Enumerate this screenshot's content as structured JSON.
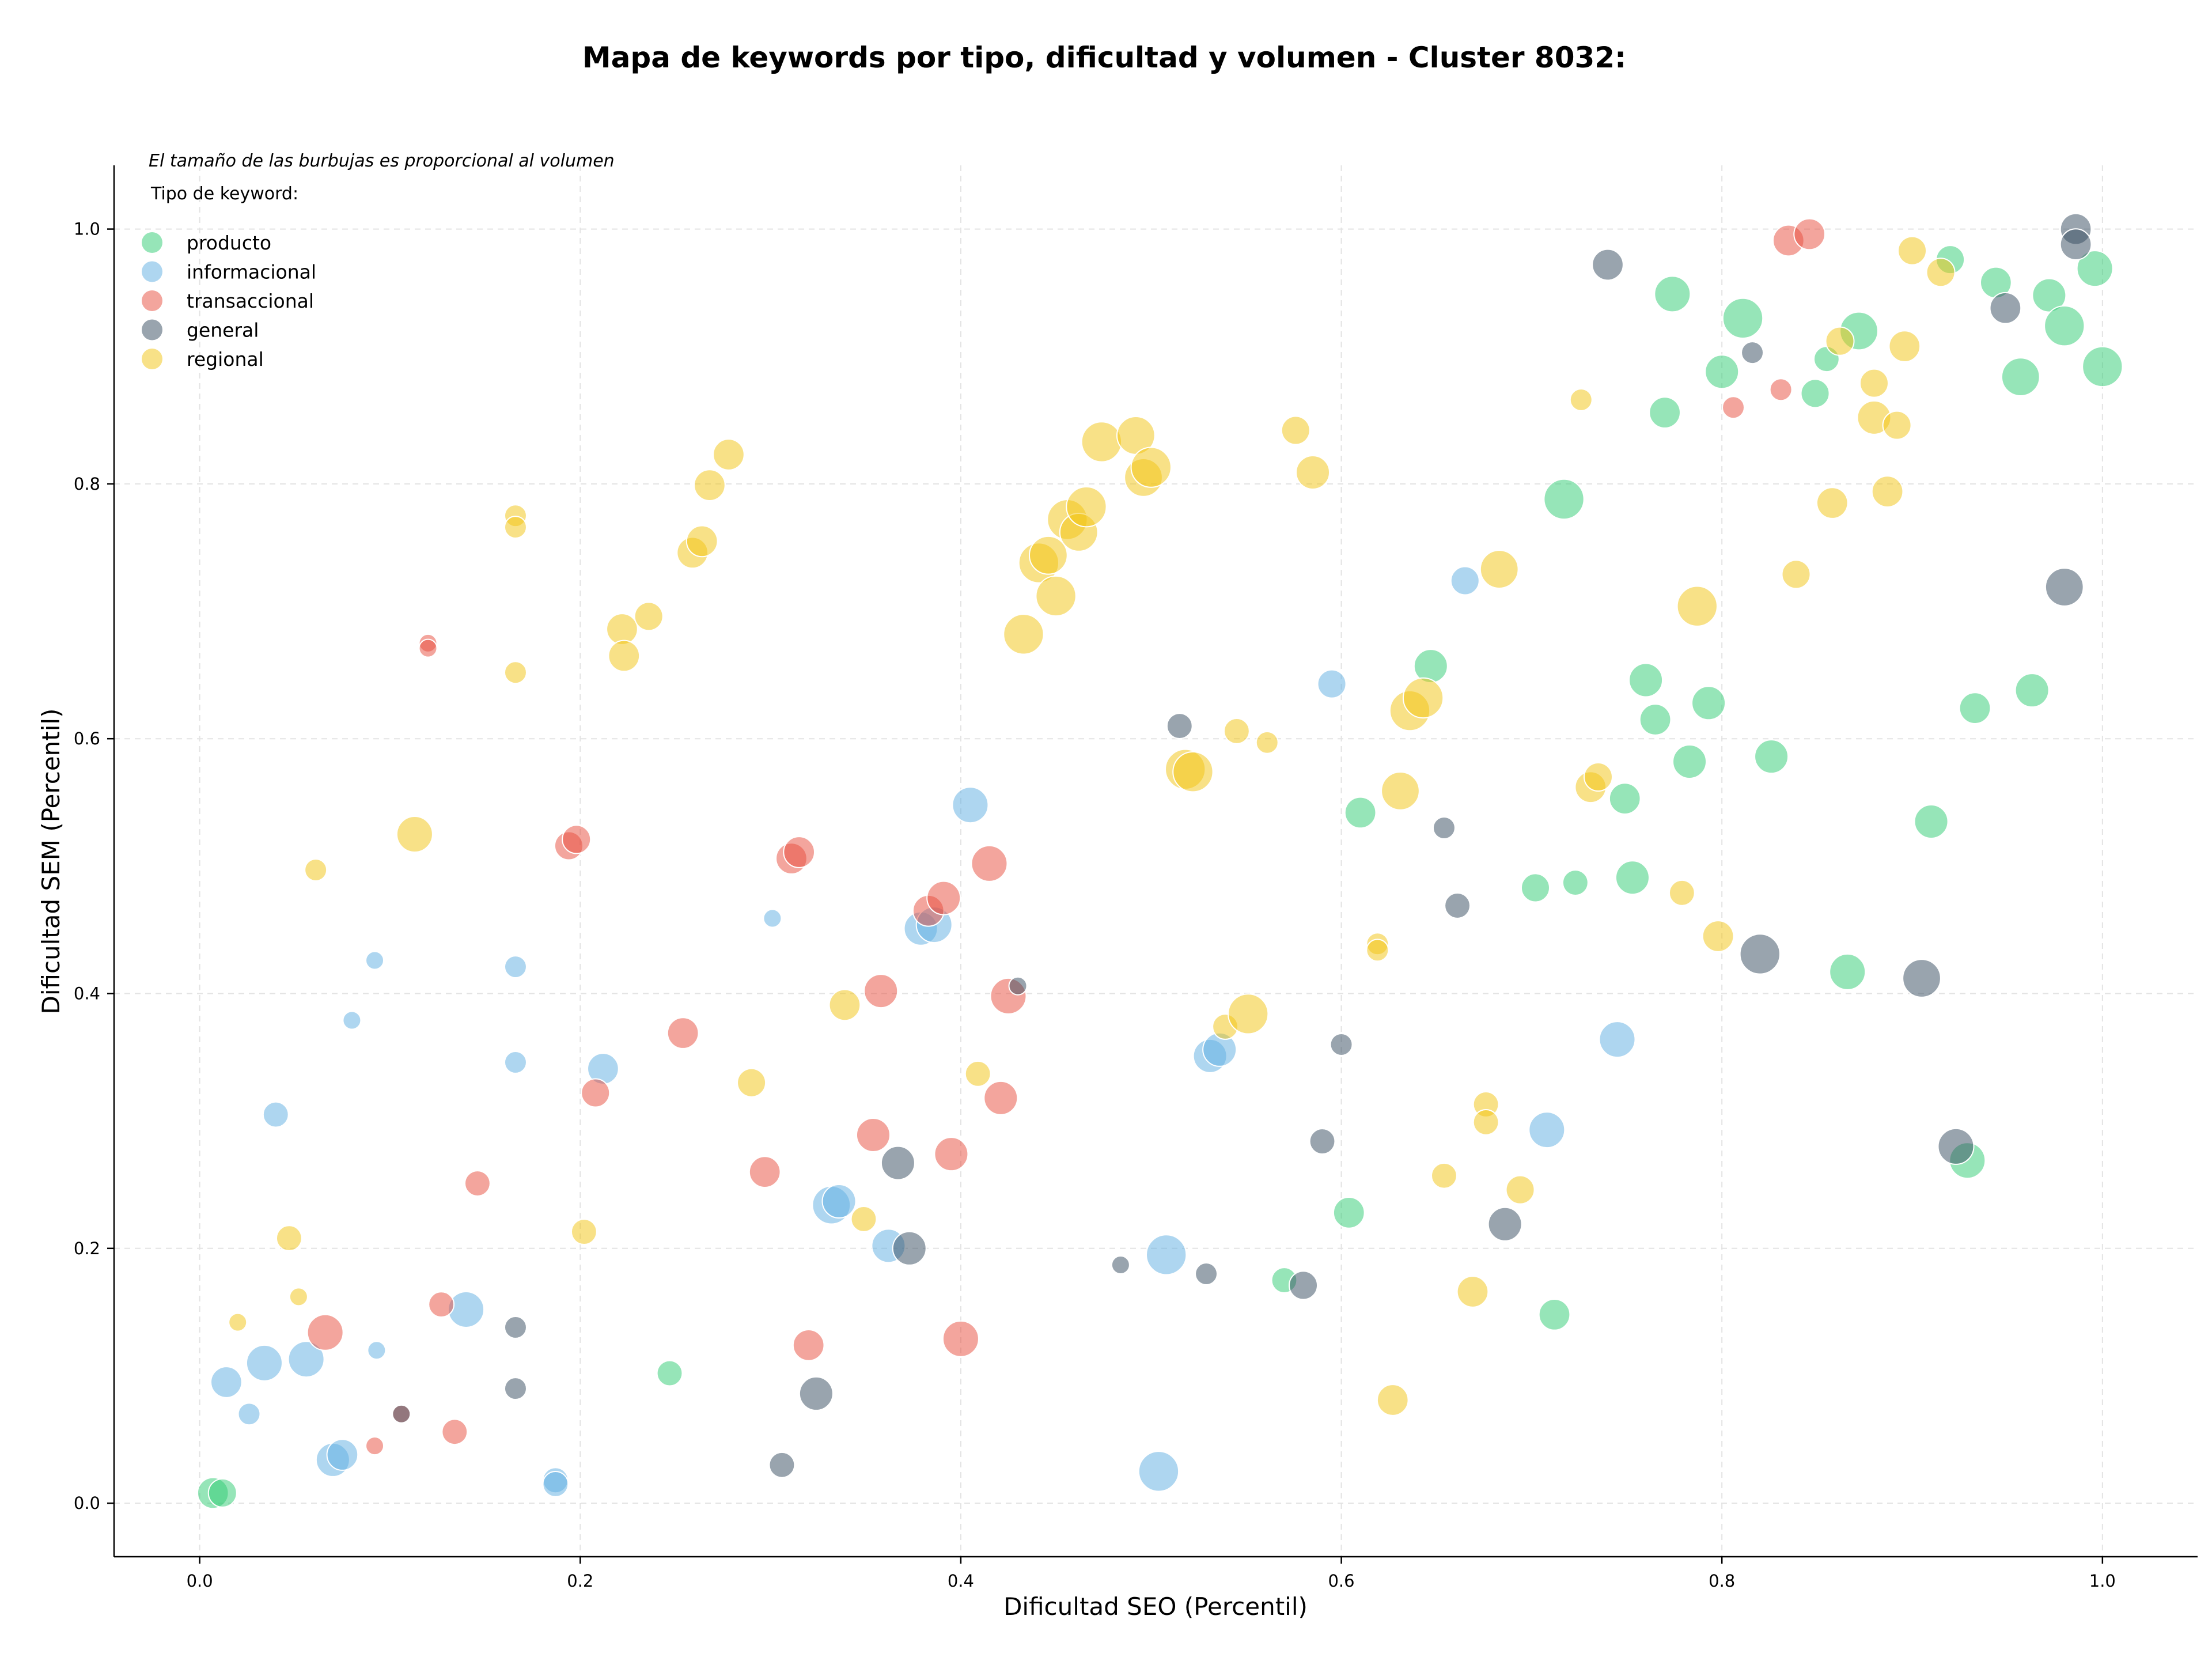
{
  "chart_data": {
    "type": "scatter",
    "title": "Mapa de keywords por tipo, dificultad y volumen - Cluster 8032:",
    "xlabel": "Dificultad SEO (Percentil)",
    "ylabel": "Dificultad SEM (Percentil)",
    "xlim": [
      -0.045,
      1.05
    ],
    "ylim": [
      -0.042,
      1.05
    ],
    "x_ticks": [
      "0.0",
      "0.2",
      "0.4",
      "0.6",
      "0.8",
      "1.0"
    ],
    "y_ticks": [
      "0.0",
      "0.2",
      "0.4",
      "0.6",
      "0.8",
      "1.0"
    ],
    "grid": true,
    "note": "El tamaño de las burbujas es proporcional al volumen",
    "legend": {
      "title": "Tipo de keyword:",
      "placement": "top-left"
    },
    "series": [
      {
        "name": "producto",
        "color": "#2ecc71",
        "points": [
          [
            0.007,
            0.008,
            3
          ],
          [
            0.012,
            0.008,
            2.5
          ],
          [
            0.247,
            0.102,
            2
          ],
          [
            0.57,
            0.175,
            2
          ],
          [
            0.604,
            0.228,
            3
          ],
          [
            0.61,
            0.542,
            3
          ],
          [
            0.647,
            0.657,
            3.5
          ],
          [
            0.702,
            0.483,
            2.5
          ],
          [
            0.723,
            0.487,
            2
          ],
          [
            0.712,
            0.148,
            3
          ],
          [
            0.717,
            0.788,
            5
          ],
          [
            0.749,
            0.553,
            3
          ],
          [
            0.753,
            0.491,
            3.5
          ],
          [
            0.76,
            0.646,
            3.5
          ],
          [
            0.765,
            0.615,
            3
          ],
          [
            0.77,
            0.856,
            3
          ],
          [
            0.774,
            0.949,
            4
          ],
          [
            0.783,
            0.582,
            3.5
          ],
          [
            0.793,
            0.628,
            3.5
          ],
          [
            0.8,
            0.888,
            3.5
          ],
          [
            0.811,
            0.93,
            5
          ],
          [
            0.826,
            0.586,
            3.5
          ],
          [
            0.849,
            0.871,
            2.5
          ],
          [
            0.855,
            0.898,
            2
          ],
          [
            0.866,
            0.417,
            4
          ],
          [
            0.872,
            0.92,
            4.5
          ],
          [
            0.91,
            0.535,
            3.5
          ],
          [
            0.92,
            0.976,
            2.5
          ],
          [
            0.929,
            0.269,
            4
          ],
          [
            0.933,
            0.624,
            3
          ],
          [
            0.944,
            0.958,
            3
          ],
          [
            0.957,
            0.884,
            4.5
          ],
          [
            0.963,
            0.638,
            3.5
          ],
          [
            0.972,
            0.948,
            3.5
          ],
          [
            0.98,
            0.924,
            5
          ],
          [
            0.996,
            0.969,
            4
          ],
          [
            1.0,
            0.892,
            5
          ]
        ]
      },
      {
        "name": "informacional",
        "color": "#5dade2",
        "points": [
          [
            0.026,
            0.07,
            1.5
          ],
          [
            0.04,
            0.305,
            2
          ],
          [
            0.034,
            0.11,
            4
          ],
          [
            0.014,
            0.095,
            3
          ],
          [
            0.056,
            0.113,
            4
          ],
          [
            0.07,
            0.034,
            3.5
          ],
          [
            0.075,
            0.038,
            3
          ],
          [
            0.08,
            0.379,
            1
          ],
          [
            0.092,
            0.426,
            1
          ],
          [
            0.093,
            0.12,
            1
          ],
          [
            0.14,
            0.152,
            4
          ],
          [
            0.166,
            0.421,
            1.5
          ],
          [
            0.166,
            0.346,
            1.5
          ],
          [
            0.187,
            0.018,
            2
          ],
          [
            0.187,
            0.015,
            2
          ],
          [
            0.212,
            0.341,
            3
          ],
          [
            0.301,
            0.459,
            1
          ],
          [
            0.332,
            0.234,
            4.5
          ],
          [
            0.336,
            0.237,
            3.5
          ],
          [
            0.362,
            0.202,
            3.5
          ],
          [
            0.379,
            0.451,
            3.5
          ],
          [
            0.386,
            0.454,
            4
          ],
          [
            0.405,
            0.548,
            4
          ],
          [
            0.504,
            0.025,
            5
          ],
          [
            0.508,
            0.195,
            5
          ],
          [
            0.531,
            0.351,
            3.5
          ],
          [
            0.536,
            0.356,
            3.5
          ],
          [
            0.595,
            0.643,
            2.5
          ],
          [
            0.665,
            0.724,
            2.5
          ],
          [
            0.708,
            0.293,
            4
          ],
          [
            0.745,
            0.364,
            4
          ]
        ]
      },
      {
        "name": "transaccional",
        "color": "#e74c3c",
        "points": [
          [
            0.066,
            0.134,
            4
          ],
          [
            0.092,
            0.045,
            1
          ],
          [
            0.106,
            0.07,
            1
          ],
          [
            0.12,
            0.675,
            1
          ],
          [
            0.12,
            0.671,
            1
          ],
          [
            0.127,
            0.156,
            2
          ],
          [
            0.134,
            0.056,
            2
          ],
          [
            0.146,
            0.251,
            2
          ],
          [
            0.194,
            0.516,
            2.5
          ],
          [
            0.198,
            0.521,
            2.5
          ],
          [
            0.208,
            0.322,
            2.5
          ],
          [
            0.254,
            0.369,
            3
          ],
          [
            0.297,
            0.26,
            3
          ],
          [
            0.311,
            0.506,
            3
          ],
          [
            0.315,
            0.511,
            3
          ],
          [
            0.32,
            0.124,
            3
          ],
          [
            0.354,
            0.289,
            3.5
          ],
          [
            0.358,
            0.402,
            3.5
          ],
          [
            0.383,
            0.465,
            3
          ],
          [
            0.391,
            0.475,
            3.5
          ],
          [
            0.395,
            0.274,
            3.5
          ],
          [
            0.4,
            0.129,
            4
          ],
          [
            0.415,
            0.502,
            4
          ],
          [
            0.421,
            0.318,
            3.5
          ],
          [
            0.425,
            0.398,
            4
          ],
          [
            0.806,
            0.86,
            1.5
          ],
          [
            0.831,
            0.874,
            1.5
          ],
          [
            0.835,
            0.991,
            3
          ],
          [
            0.846,
            0.996,
            3
          ]
        ]
      },
      {
        "name": "general",
        "color": "#34495e",
        "points": [
          [
            0.106,
            0.07,
            1
          ],
          [
            0.166,
            0.138,
            1.5
          ],
          [
            0.166,
            0.09,
            1.5
          ],
          [
            0.306,
            0.03,
            2
          ],
          [
            0.324,
            0.086,
            3.5
          ],
          [
            0.367,
            0.267,
            3.5
          ],
          [
            0.373,
            0.2,
            3.5
          ],
          [
            0.43,
            0.406,
            1
          ],
          [
            0.484,
            0.187,
            1
          ],
          [
            0.515,
            0.61,
            2
          ],
          [
            0.529,
            0.18,
            1.5
          ],
          [
            0.58,
            0.171,
            2.5
          ],
          [
            0.59,
            0.284,
            2
          ],
          [
            0.6,
            0.36,
            1.5
          ],
          [
            0.654,
            0.53,
            1.5
          ],
          [
            0.661,
            0.469,
            2
          ],
          [
            0.686,
            0.219,
            3.5
          ],
          [
            0.74,
            0.972,
            3
          ],
          [
            0.816,
            0.903,
            1.5
          ],
          [
            0.82,
            0.431,
            5
          ],
          [
            0.905,
            0.412,
            4.5
          ],
          [
            0.923,
            0.28,
            4
          ],
          [
            0.949,
            0.938,
            3
          ],
          [
            0.98,
            0.719,
            4.5
          ],
          [
            0.986,
            1.0,
            3
          ],
          [
            0.986,
            0.988,
            3
          ]
        ]
      },
      {
        "name": "regional",
        "color": "#f1c40f",
        "points": [
          [
            0.02,
            0.142,
            1
          ],
          [
            0.047,
            0.208,
            2
          ],
          [
            0.052,
            0.162,
            1
          ],
          [
            0.061,
            0.497,
            1.5
          ],
          [
            0.113,
            0.525,
            4
          ],
          [
            0.166,
            0.775,
            1.5
          ],
          [
            0.166,
            0.766,
            1.5
          ],
          [
            0.166,
            0.652,
            1.5
          ],
          [
            0.202,
            0.213,
            2
          ],
          [
            0.222,
            0.686,
            3
          ],
          [
            0.223,
            0.665,
            3
          ],
          [
            0.236,
            0.696,
            2.5
          ],
          [
            0.259,
            0.746,
            3
          ],
          [
            0.264,
            0.755,
            3
          ],
          [
            0.268,
            0.799,
            3
          ],
          [
            0.278,
            0.823,
            3
          ],
          [
            0.29,
            0.33,
            2.5
          ],
          [
            0.339,
            0.391,
            3
          ],
          [
            0.349,
            0.223,
            2
          ],
          [
            0.409,
            0.337,
            2
          ],
          [
            0.433,
            0.682,
            5
          ],
          [
            0.441,
            0.738,
            5
          ],
          [
            0.446,
            0.744,
            4.5
          ],
          [
            0.45,
            0.712,
            5
          ],
          [
            0.456,
            0.772,
            5
          ],
          [
            0.462,
            0.762,
            4.5
          ],
          [
            0.466,
            0.782,
            5
          ],
          [
            0.474,
            0.833,
            5
          ],
          [
            0.492,
            0.838,
            4.5
          ],
          [
            0.496,
            0.805,
            4.5
          ],
          [
            0.5,
            0.813,
            5
          ],
          [
            0.518,
            0.576,
            5
          ],
          [
            0.522,
            0.574,
            5
          ],
          [
            0.539,
            0.374,
            2
          ],
          [
            0.545,
            0.606,
            2
          ],
          [
            0.551,
            0.384,
            5
          ],
          [
            0.561,
            0.597,
            1.5
          ],
          [
            0.576,
            0.842,
            2.5
          ],
          [
            0.585,
            0.809,
            3.5
          ],
          [
            0.619,
            0.439,
            1.5
          ],
          [
            0.619,
            0.434,
            1.5
          ],
          [
            0.627,
            0.081,
            3
          ],
          [
            0.631,
            0.559,
            4.5
          ],
          [
            0.636,
            0.622,
            5
          ],
          [
            0.643,
            0.632,
            5
          ],
          [
            0.654,
            0.257,
            2
          ],
          [
            0.669,
            0.166,
            3
          ],
          [
            0.676,
            0.313,
            2
          ],
          [
            0.676,
            0.299,
            2
          ],
          [
            0.683,
            0.733,
            4.5
          ],
          [
            0.694,
            0.246,
            2.5
          ],
          [
            0.726,
            0.866,
            1.5
          ],
          [
            0.731,
            0.562,
            3
          ],
          [
            0.735,
            0.57,
            2.5
          ],
          [
            0.779,
            0.479,
            2
          ],
          [
            0.787,
            0.704,
            5
          ],
          [
            0.798,
            0.445,
            3
          ],
          [
            0.839,
            0.729,
            2.5
          ],
          [
            0.858,
            0.785,
            3
          ],
          [
            0.862,
            0.912,
            2.5
          ],
          [
            0.88,
            0.852,
            3.5
          ],
          [
            0.88,
            0.879,
            2.5
          ],
          [
            0.887,
            0.794,
            3
          ],
          [
            0.892,
            0.846,
            2.5
          ],
          [
            0.896,
            0.908,
            3
          ],
          [
            0.9,
            0.983,
            2.5
          ],
          [
            0.915,
            0.966,
            2.5
          ]
        ]
      }
    ]
  }
}
